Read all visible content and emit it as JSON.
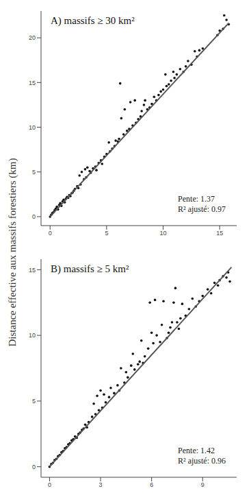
{
  "ylabel": "Distance effective aux massifs forestiers (km)",
  "chart_data": [
    {
      "type": "scatter",
      "title": "A) massifs ≥ 30 km²",
      "annotations": [
        "Pente: 1.37",
        "R² ajusté: 0.97"
      ],
      "grid": false,
      "xlim": [
        -0.8,
        16.5
      ],
      "xticks": [
        0,
        5,
        10,
        15
      ],
      "ylim": [
        -1,
        23
      ],
      "yticks": [
        0,
        5,
        10,
        15,
        20
      ],
      "series": [
        {
          "type": "scatter",
          "color": "#111111",
          "marker": "circle",
          "x": [
            0,
            0.1,
            0.2,
            0.3,
            0.4,
            0.5,
            0.6,
            0.7,
            0.8,
            0.9,
            1.0,
            1.1,
            1.2,
            1.3,
            1.4,
            1.5,
            1.6,
            1.7,
            1.8,
            1.9,
            2.0,
            2.1,
            2.2,
            2.4,
            2.5,
            2.6,
            2.7,
            2.8,
            3.0,
            3.1,
            3.2,
            3.3,
            3.5,
            3.6,
            3.8,
            4.0,
            4.1,
            4.3,
            4.5,
            4.6,
            4.8,
            5.0,
            5.2,
            5.3,
            5.5,
            5.7,
            5.8,
            6.0,
            6.1,
            6.2,
            6.3,
            6.5,
            6.6,
            6.8,
            7.0,
            7.1,
            7.3,
            7.5,
            7.6,
            7.8,
            8.0,
            8.1,
            8.3,
            8.4,
            8.6,
            8.8,
            9.0,
            9.2,
            9.4,
            9.6,
            9.8,
            10.0,
            10.2,
            10.3,
            10.5,
            10.7,
            10.9,
            11.0,
            11.2,
            11.5,
            11.8,
            12.0,
            12.2,
            12.5,
            12.8,
            13.0,
            13.2,
            13.5,
            14.8,
            15.0,
            15.3,
            15.4,
            15.6,
            15.8
          ],
          "values": [
            0,
            0.2,
            0.4,
            0.5,
            0.7,
            0.9,
            1.1,
            0.8,
            1.3,
            1.5,
            1.2,
            1.7,
            1.9,
            1.6,
            2.0,
            2.2,
            2.1,
            2.4,
            2.3,
            2.6,
            2.7,
            2.9,
            3.1,
            3.4,
            3.2,
            4.6,
            3.6,
            5.0,
            4.2,
            5.3,
            4.4,
            5.5,
            5.1,
            4.9,
            5.4,
            5.6,
            5.2,
            6.0,
            6.3,
            5.9,
            6.7,
            7.0,
            8.3,
            7.3,
            7.6,
            7.9,
            8.5,
            8.4,
            8.7,
            14.9,
            11.0,
            9.2,
            12.0,
            9.6,
            9.8,
            12.8,
            10.2,
            13.0,
            10.5,
            10.9,
            11.2,
            11.8,
            12.5,
            13.0,
            12.0,
            12.2,
            12.6,
            13.4,
            13.0,
            13.6,
            14.0,
            14.2,
            15.9,
            14.6,
            14.8,
            15.2,
            16.2,
            15.5,
            15.9,
            16.5,
            16.2,
            16.8,
            17.4,
            17.0,
            18.5,
            17.9,
            18.6,
            18.8,
            20.3,
            20.8,
            21.0,
            22.5,
            22.0,
            21.5
          ]
        },
        {
          "type": "line",
          "color": "#555555",
          "line_style": "solid",
          "x": [
            0,
            15.8
          ],
          "values": [
            0,
            21.65
          ]
        }
      ]
    },
    {
      "type": "scatter",
      "title": "B) massifs ≥ 5 km²",
      "annotations": [
        "Pente: 1.42",
        "R² ajusté: 0.96"
      ],
      "grid": false,
      "xlim": [
        -0.5,
        11
      ],
      "xticks": [
        0,
        3,
        6,
        9
      ],
      "ylim": [
        -0.8,
        15.8
      ],
      "yticks": [
        0,
        5,
        10,
        15
      ],
      "series": [
        {
          "type": "scatter",
          "color": "#111111",
          "marker": "circle",
          "x": [
            0,
            0.1,
            0.2,
            0.3,
            0.4,
            0.5,
            0.6,
            0.7,
            0.8,
            0.9,
            1.0,
            1.1,
            1.2,
            1.3,
            1.4,
            1.5,
            1.6,
            1.7,
            1.8,
            1.9,
            2.0,
            2.1,
            2.2,
            2.3,
            2.5,
            2.6,
            2.7,
            2.8,
            2.9,
            3.0,
            3.1,
            3.2,
            3.3,
            3.5,
            3.6,
            3.8,
            4.0,
            4.1,
            4.2,
            4.4,
            4.5,
            4.6,
            4.8,
            4.9,
            5.0,
            5.2,
            5.3,
            5.4,
            5.5,
            5.6,
            5.8,
            5.9,
            6.0,
            6.1,
            6.2,
            6.3,
            6.5,
            6.6,
            6.7,
            6.9,
            7.0,
            7.1,
            7.2,
            7.3,
            7.4,
            7.5,
            7.6,
            7.7,
            7.8,
            8.0,
            8.2,
            8.4,
            8.6,
            8.8,
            9.0,
            9.3,
            9.5,
            9.7,
            9.9,
            10.0,
            10.2,
            10.4,
            10.5,
            10.6
          ],
          "values": [
            0,
            0.2,
            0.3,
            0.5,
            0.6,
            0.8,
            0.9,
            1.1,
            1.2,
            1.4,
            1.5,
            1.7,
            1.8,
            2.0,
            2.1,
            2.3,
            2.2,
            2.5,
            2.6,
            2.8,
            2.9,
            3.2,
            3.0,
            3.4,
            3.8,
            4.8,
            4.0,
            5.4,
            4.3,
            5.8,
            4.5,
            5.5,
            4.9,
            5.3,
            6.0,
            5.6,
            6.2,
            5.8,
            7.5,
            6.4,
            7.2,
            6.8,
            7.7,
            8.6,
            7.4,
            7.8,
            8.0,
            9.6,
            7.9,
            8.4,
            9.0,
            12.5,
            10.2,
            9.4,
            12.7,
            10.0,
            9.5,
            10.8,
            12.6,
            9.8,
            10.2,
            10.6,
            11.0,
            12.5,
            13.6,
            11.0,
            10.5,
            11.3,
            12.4,
            11.5,
            12.0,
            12.8,
            12.2,
            12.6,
            13.0,
            13.5,
            13.2,
            14.0,
            13.8,
            14.2,
            14.5,
            14.4,
            14.8,
            14.1
          ]
        },
        {
          "type": "line",
          "color": "#555555",
          "line_style": "solid",
          "x": [
            0,
            10.7
          ],
          "values": [
            0,
            15.19
          ]
        }
      ]
    }
  ]
}
